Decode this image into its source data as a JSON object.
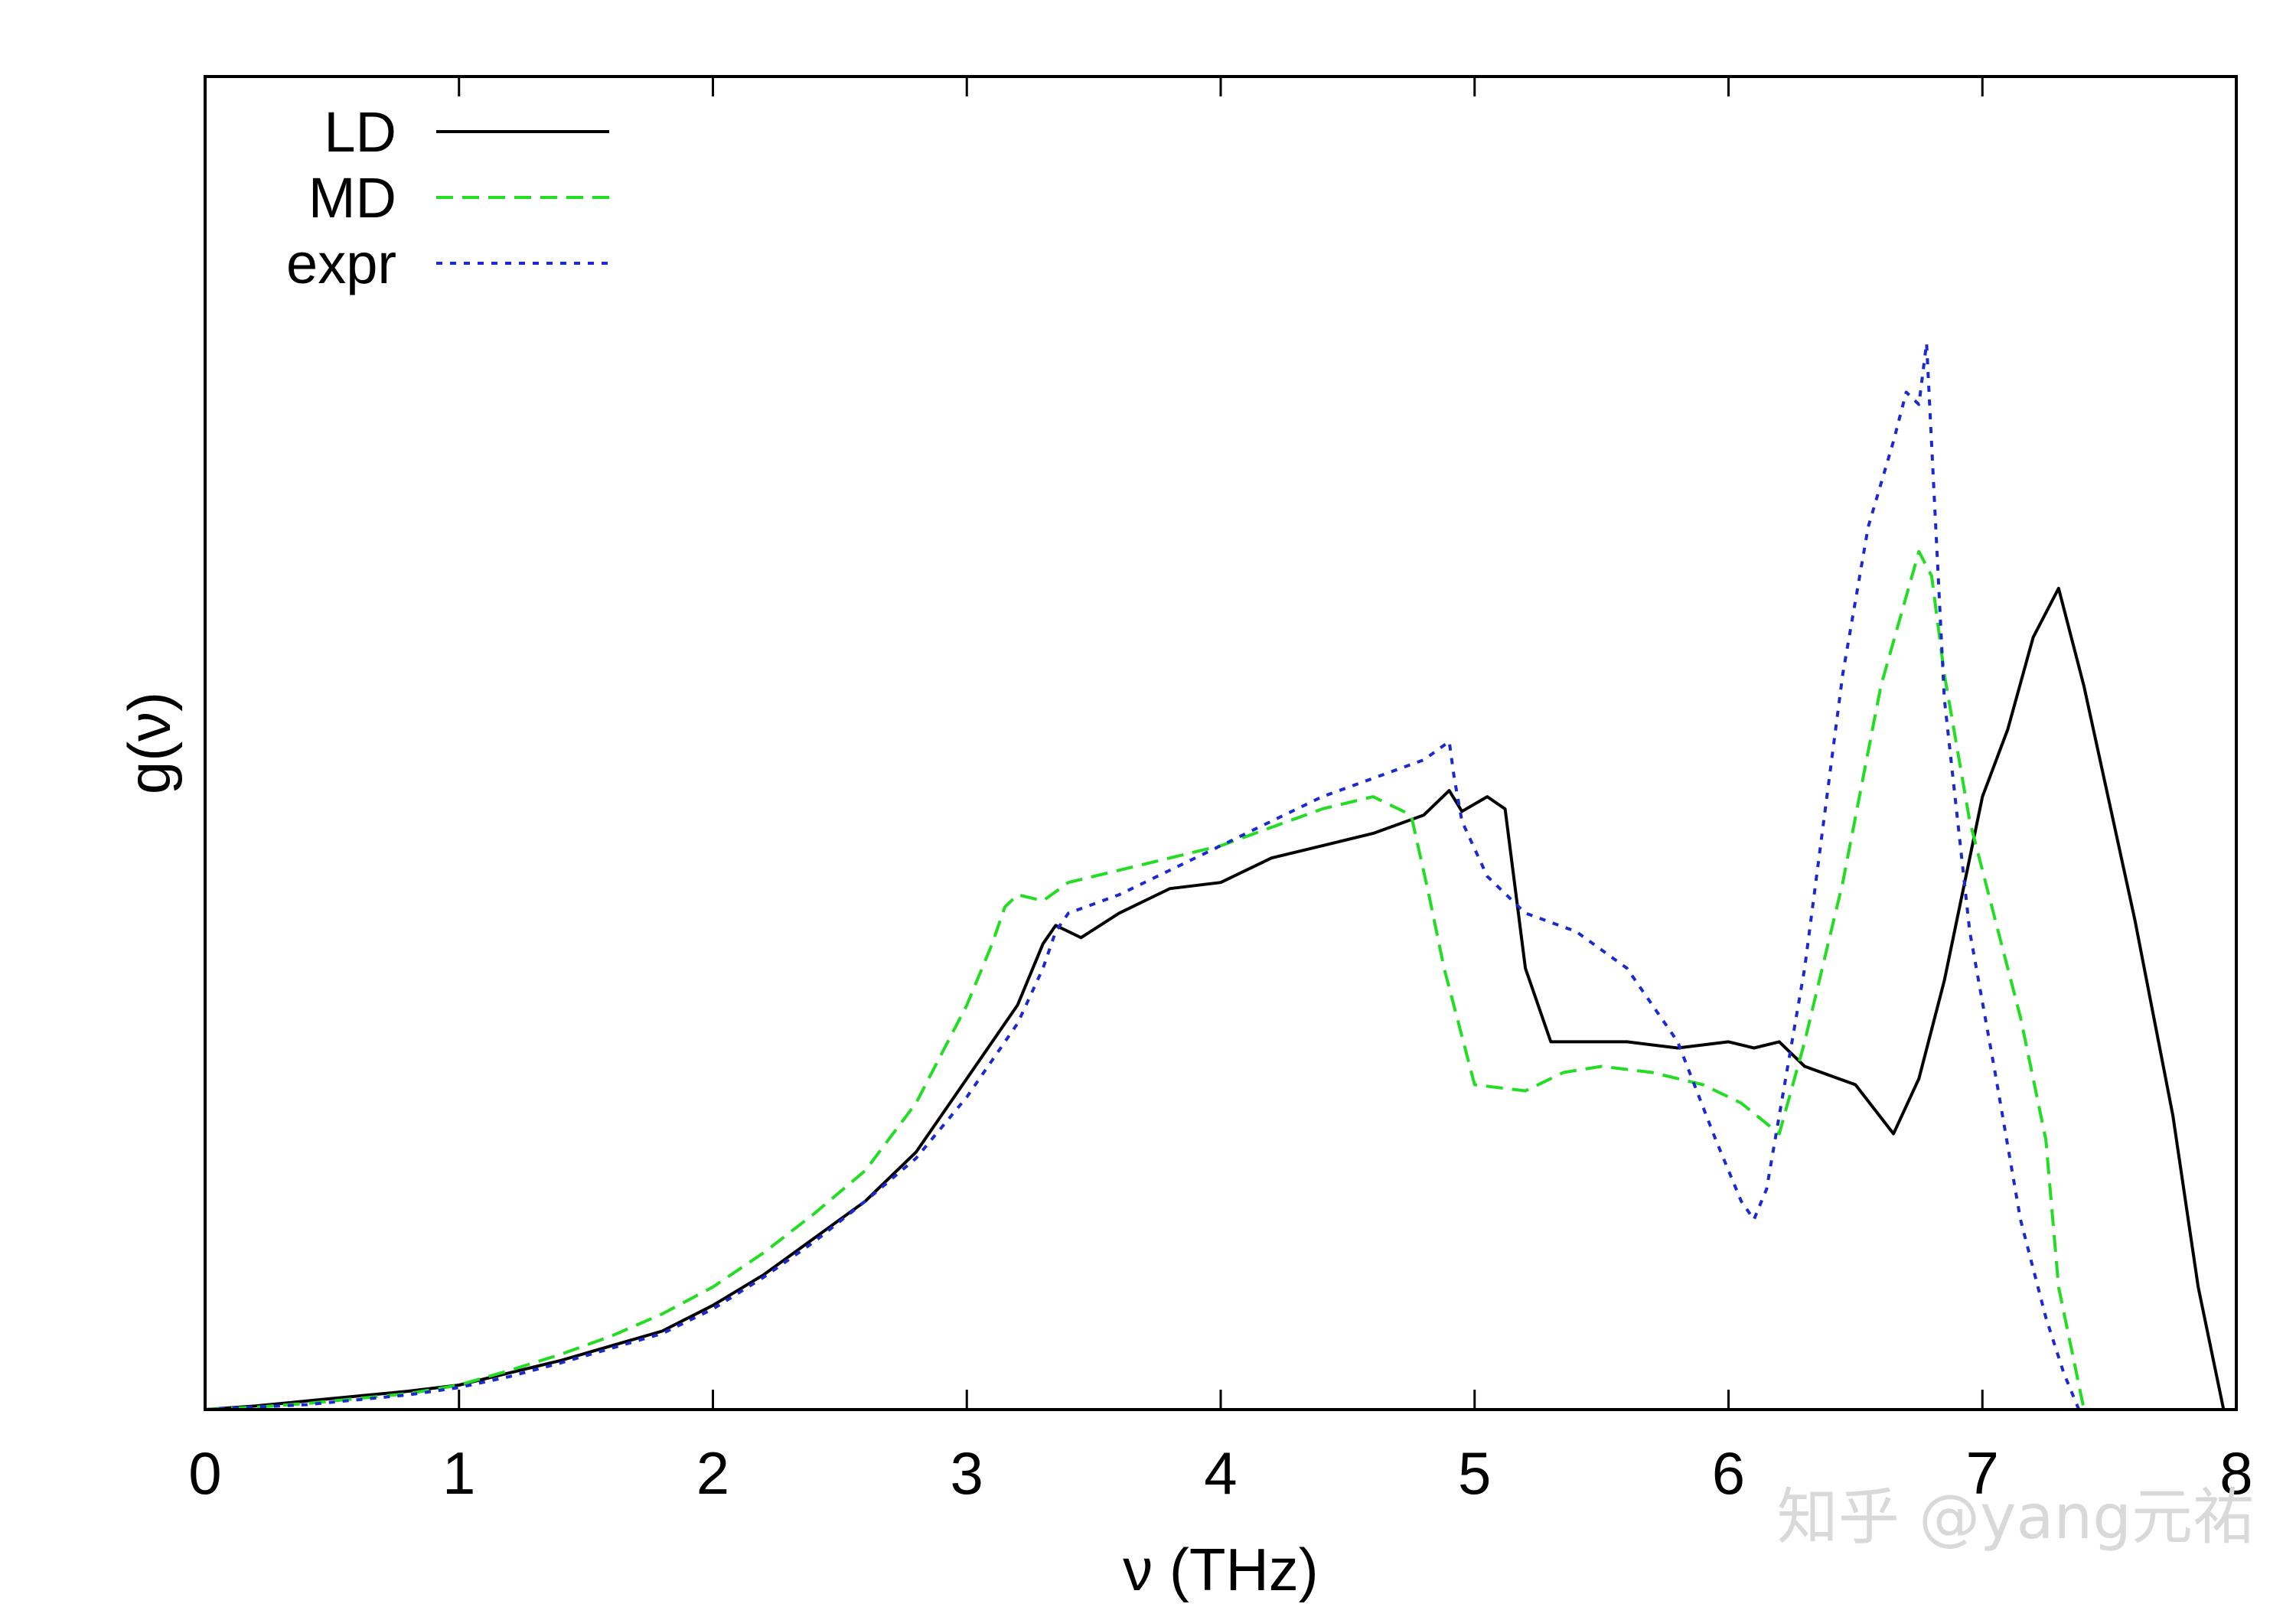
{
  "chart_data": {
    "type": "line",
    "title": "",
    "xlabel": "ν (THz)",
    "ylabel": "g(ν)",
    "xlim": [
      0,
      8
    ],
    "ylim": [
      0,
      1.0
    ],
    "xticks": [
      "0",
      "1",
      "2",
      "3",
      "4",
      "5",
      "6",
      "7",
      "8"
    ],
    "yticks": [],
    "grid": false,
    "legend_position": "top-left",
    "watermark": "知乎 @yang元祐",
    "series": [
      {
        "name": "LD",
        "color": "#000000",
        "dash": "solid",
        "x": [
          0,
          0.2,
          0.4,
          0.6,
          0.8,
          1.0,
          1.2,
          1.4,
          1.6,
          1.8,
          2.0,
          2.2,
          2.4,
          2.6,
          2.8,
          3.0,
          3.2,
          3.3,
          3.35,
          3.45,
          3.6,
          3.8,
          4.0,
          4.2,
          4.4,
          4.6,
          4.8,
          4.9,
          4.95,
          5.05,
          5.12,
          5.2,
          5.3,
          5.45,
          5.6,
          5.8,
          6.0,
          6.1,
          6.2,
          6.3,
          6.5,
          6.65,
          6.75,
          6.85,
          7.0,
          7.1,
          7.2,
          7.3,
          7.4,
          7.6,
          7.75,
          7.85,
          7.95
        ],
        "y": [
          0,
          0.003,
          0.007,
          0.011,
          0.015,
          0.02,
          0.03,
          0.04,
          0.052,
          0.064,
          0.085,
          0.11,
          0.14,
          0.17,
          0.21,
          0.27,
          0.33,
          0.38,
          0.395,
          0.385,
          0.405,
          0.425,
          0.43,
          0.45,
          0.46,
          0.47,
          0.485,
          0.505,
          0.488,
          0.5,
          0.49,
          0.36,
          0.3,
          0.3,
          0.3,
          0.295,
          0.3,
          0.295,
          0.3,
          0.28,
          0.265,
          0.225,
          0.27,
          0.35,
          0.5,
          0.555,
          0.63,
          0.67,
          0.59,
          0.4,
          0.24,
          0.1,
          0.0
        ]
      },
      {
        "name": "MD",
        "color": "#22dd22",
        "dash": "dashed",
        "x": [
          0,
          0.2,
          0.4,
          0.6,
          0.8,
          1.0,
          1.2,
          1.4,
          1.6,
          1.8,
          2.0,
          2.2,
          2.4,
          2.6,
          2.8,
          3.0,
          3.1,
          3.15,
          3.2,
          3.3,
          3.4,
          3.6,
          3.8,
          4.0,
          4.2,
          4.4,
          4.6,
          4.75,
          4.82,
          4.88,
          5.0,
          5.2,
          5.35,
          5.5,
          5.7,
          5.9,
          6.05,
          6.2,
          6.3,
          6.45,
          6.6,
          6.75,
          6.8,
          6.85,
          6.95,
          7.05,
          7.15,
          7.25,
          7.3,
          7.35,
          7.4,
          7.45
        ],
        "y": [
          0,
          0.002,
          0.005,
          0.009,
          0.013,
          0.02,
          0.032,
          0.045,
          0.06,
          0.078,
          0.1,
          0.128,
          0.16,
          0.195,
          0.25,
          0.33,
          0.38,
          0.41,
          0.42,
          0.415,
          0.43,
          0.44,
          0.45,
          0.46,
          0.475,
          0.49,
          0.5,
          0.485,
          0.42,
          0.36,
          0.265,
          0.26,
          0.275,
          0.28,
          0.275,
          0.265,
          0.25,
          0.225,
          0.3,
          0.43,
          0.59,
          0.7,
          0.68,
          0.6,
          0.48,
          0.4,
          0.32,
          0.22,
          0.1,
          0.05,
          0.0,
          0.0
        ]
      },
      {
        "name": "expr",
        "color": "#1a2ad0",
        "dash": "dotted",
        "x": [
          0,
          0.2,
          0.4,
          0.6,
          0.8,
          1.0,
          1.2,
          1.4,
          1.6,
          1.8,
          2.0,
          2.2,
          2.4,
          2.6,
          2.8,
          3.0,
          3.2,
          3.3,
          3.35,
          3.4,
          3.6,
          3.8,
          4.0,
          4.2,
          4.4,
          4.6,
          4.8,
          4.9,
          4.92,
          4.95,
          5.05,
          5.2,
          5.4,
          5.6,
          5.8,
          5.95,
          6.05,
          6.1,
          6.15,
          6.3,
          6.45,
          6.55,
          6.65,
          6.7,
          6.75,
          6.78,
          6.85,
          6.95,
          7.05,
          7.15,
          7.25,
          7.32,
          7.38
        ],
        "y": [
          0,
          0.002,
          0.004,
          0.008,
          0.012,
          0.018,
          0.027,
          0.038,
          0.05,
          0.062,
          0.082,
          0.108,
          0.137,
          0.17,
          0.205,
          0.255,
          0.315,
          0.36,
          0.39,
          0.405,
          0.42,
          0.44,
          0.46,
          0.48,
          0.5,
          0.515,
          0.53,
          0.545,
          0.515,
          0.48,
          0.435,
          0.405,
          0.39,
          0.36,
          0.3,
          0.22,
          0.17,
          0.155,
          0.18,
          0.36,
          0.6,
          0.72,
          0.79,
          0.83,
          0.82,
          0.87,
          0.58,
          0.39,
          0.275,
          0.155,
          0.075,
          0.03,
          0.0
        ]
      }
    ]
  }
}
